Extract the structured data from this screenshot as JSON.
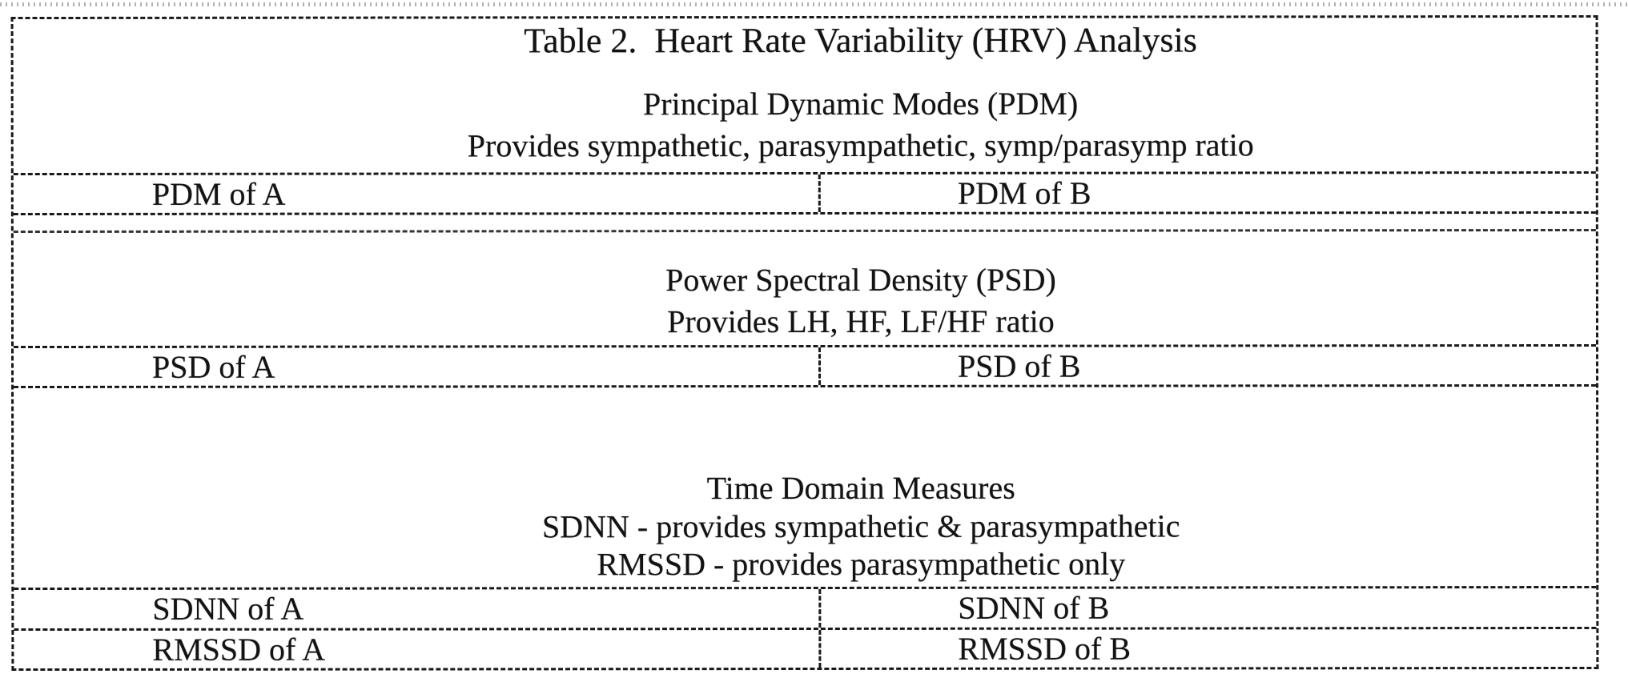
{
  "page": {
    "caption": "Table 2.  Heart Rate Variability (HRV) Analysis",
    "sections": [
      {
        "heading": "Principal Dynamic Modes (PDM)",
        "subheadings": [
          "Provides sympathetic, parasympathetic, symp/parasymp ratio"
        ],
        "rows": [
          {
            "left": "PDM of A",
            "right": "PDM of B"
          }
        ]
      },
      {
        "heading": "Power Spectral Density (PSD)",
        "subheadings": [
          "Provides LH, HF, LF/HF ratio"
        ],
        "rows": [
          {
            "left": "PSD of A",
            "right": "PSD of B"
          }
        ]
      },
      {
        "heading": "Time Domain Measures",
        "subheadings": [
          "SDNN - provides sympathetic & parasympathetic",
          "RMSSD - provides parasympathetic only"
        ],
        "rows": [
          {
            "left": "SDNN of A",
            "right": "SDNN of B"
          },
          {
            "left": "RMSSD of A",
            "right": "RMSSD of B"
          }
        ]
      }
    ],
    "colors": {
      "ink": "#191919",
      "paper": "#ffffff"
    }
  }
}
